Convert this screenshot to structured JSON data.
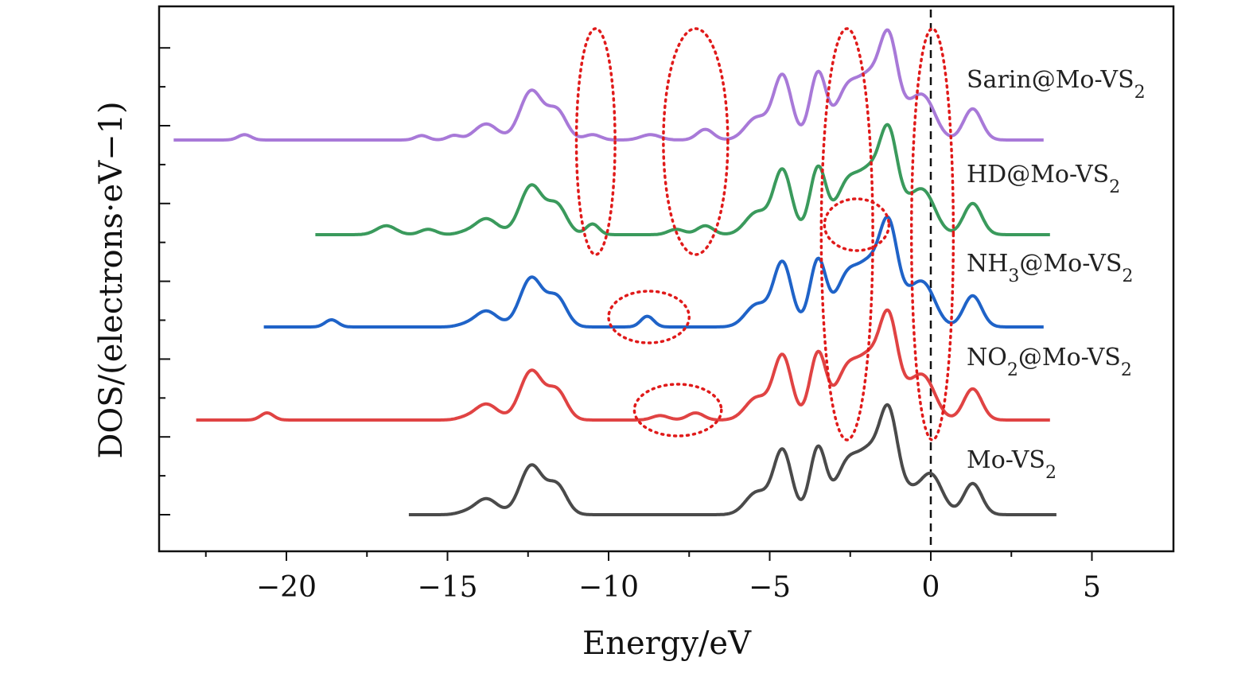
{
  "chart_data": {
    "type": "line",
    "title": "",
    "xlabel": "Energy/eV",
    "ylabel": "DOS/(electrons·eV−1)",
    "xlim": [
      -24,
      7.5
    ],
    "x_ticks": [
      -20,
      -15,
      -10,
      -5,
      0,
      5
    ],
    "x_tick_labels": [
      "−20",
      "−15",
      "−10",
      "−5",
      "0",
      "5"
    ],
    "grid": false,
    "legend": "labels placed at right end of each curve",
    "fermi_level": 0,
    "series": [
      {
        "name": "Mo-VS₂",
        "color": "#4a4a4a",
        "x_range": [
          -16.2,
          3.9
        ],
        "peaks": [
          [
            -14.5,
            0.02,
            0.25
          ],
          [
            -13.8,
            0.18,
            0.35
          ],
          [
            -12.4,
            0.55,
            0.35
          ],
          [
            -11.6,
            0.32,
            0.3
          ],
          [
            -5.4,
            0.25,
            0.35
          ],
          [
            -4.6,
            0.72,
            0.28
          ],
          [
            -3.5,
            0.75,
            0.25
          ],
          [
            -2.6,
            0.55,
            0.35
          ],
          [
            -1.9,
            0.62,
            0.35
          ],
          [
            -1.3,
            1.05,
            0.28
          ],
          [
            -0.7,
            0.2,
            0.3
          ],
          [
            0.0,
            0.45,
            0.35
          ],
          [
            1.3,
            0.35,
            0.28
          ]
        ]
      },
      {
        "name": "NO₂@Mo-VS₂",
        "color": "#e04343",
        "x_range": [
          -22.8,
          3.7
        ],
        "peaks": [
          [
            -20.6,
            0.08,
            0.2
          ],
          [
            -14.5,
            0.02,
            0.25
          ],
          [
            -13.8,
            0.18,
            0.35
          ],
          [
            -12.4,
            0.55,
            0.35
          ],
          [
            -11.6,
            0.32,
            0.3
          ],
          [
            -8.4,
            0.05,
            0.25
          ],
          [
            -7.3,
            0.08,
            0.25
          ],
          [
            -5.4,
            0.25,
            0.35
          ],
          [
            -4.6,
            0.72,
            0.28
          ],
          [
            -3.5,
            0.75,
            0.25
          ],
          [
            -2.6,
            0.55,
            0.35
          ],
          [
            -1.9,
            0.62,
            0.35
          ],
          [
            -1.3,
            1.05,
            0.28
          ],
          [
            -0.7,
            0.2,
            0.3
          ],
          [
            -0.2,
            0.45,
            0.35
          ],
          [
            1.3,
            0.35,
            0.28
          ]
        ]
      },
      {
        "name": "NH₃@Mo-VS₂",
        "color": "#1f63c8",
        "x_range": [
          -20.7,
          3.5
        ],
        "peaks": [
          [
            -18.6,
            0.08,
            0.2
          ],
          [
            -14.5,
            0.02,
            0.25
          ],
          [
            -13.8,
            0.18,
            0.35
          ],
          [
            -12.4,
            0.55,
            0.35
          ],
          [
            -11.6,
            0.32,
            0.3
          ],
          [
            -8.8,
            0.12,
            0.2
          ],
          [
            -5.4,
            0.25,
            0.35
          ],
          [
            -4.6,
            0.72,
            0.28
          ],
          [
            -3.5,
            0.75,
            0.25
          ],
          [
            -2.6,
            0.55,
            0.35
          ],
          [
            -1.9,
            0.62,
            0.35
          ],
          [
            -1.3,
            1.05,
            0.28
          ],
          [
            -0.7,
            0.2,
            0.3
          ],
          [
            -0.2,
            0.45,
            0.35
          ],
          [
            1.3,
            0.35,
            0.28
          ]
        ]
      },
      {
        "name": "HD@Mo-VS₂",
        "color": "#3a9a5c",
        "x_range": [
          -19.1,
          3.7
        ],
        "peaks": [
          [
            -16.9,
            0.1,
            0.3
          ],
          [
            -15.6,
            0.06,
            0.25
          ],
          [
            -14.5,
            0.02,
            0.25
          ],
          [
            -13.8,
            0.18,
            0.35
          ],
          [
            -12.4,
            0.55,
            0.35
          ],
          [
            -11.6,
            0.32,
            0.3
          ],
          [
            -10.5,
            0.12,
            0.2
          ],
          [
            -7.9,
            0.06,
            0.25
          ],
          [
            -7.0,
            0.1,
            0.25
          ],
          [
            -5.4,
            0.25,
            0.35
          ],
          [
            -4.6,
            0.72,
            0.28
          ],
          [
            -3.5,
            0.75,
            0.25
          ],
          [
            -2.6,
            0.55,
            0.35
          ],
          [
            -1.9,
            0.62,
            0.35
          ],
          [
            -1.3,
            1.05,
            0.28
          ],
          [
            -0.7,
            0.2,
            0.3
          ],
          [
            -0.2,
            0.45,
            0.35
          ],
          [
            1.3,
            0.35,
            0.28
          ]
        ]
      },
      {
        "name": "Sarin@Mo-VS₂",
        "color": "#a879d8",
        "x_range": [
          -23.5,
          3.5
        ],
        "peaks": [
          [
            -21.3,
            0.06,
            0.2
          ],
          [
            -15.8,
            0.05,
            0.2
          ],
          [
            -14.8,
            0.05,
            0.2
          ],
          [
            -13.8,
            0.18,
            0.35
          ],
          [
            -12.4,
            0.55,
            0.35
          ],
          [
            -11.6,
            0.32,
            0.3
          ],
          [
            -10.5,
            0.06,
            0.25
          ],
          [
            -8.7,
            0.06,
            0.3
          ],
          [
            -7.0,
            0.12,
            0.25
          ],
          [
            -5.4,
            0.25,
            0.35
          ],
          [
            -4.6,
            0.72,
            0.28
          ],
          [
            -3.5,
            0.75,
            0.25
          ],
          [
            -2.6,
            0.55,
            0.35
          ],
          [
            -1.9,
            0.62,
            0.35
          ],
          [
            -1.3,
            1.05,
            0.28
          ],
          [
            -0.7,
            0.2,
            0.3
          ],
          [
            -0.2,
            0.45,
            0.35
          ],
          [
            1.3,
            0.35,
            0.28
          ]
        ]
      }
    ],
    "annotations": [
      {
        "type": "dotted-ellipse",
        "color": "#e01a1a",
        "x_range": [
          -11.0,
          -9.8
        ],
        "around": [
          "HD@Mo-VS₂",
          "Sarin@Mo-VS₂"
        ]
      },
      {
        "type": "dotted-ellipse",
        "color": "#e01a1a",
        "x_range": [
          -8.3,
          -6.3
        ],
        "around": [
          "HD@Mo-VS₂",
          "Sarin@Mo-VS₂"
        ]
      },
      {
        "type": "dotted-ellipse",
        "color": "#e01a1a",
        "x_range": [
          -10.0,
          -7.5
        ],
        "around": [
          "NH₃@Mo-VS₂"
        ]
      },
      {
        "type": "dotted-ellipse",
        "color": "#e01a1a",
        "x_range": [
          -9.2,
          -6.5
        ],
        "around": [
          "NO₂@Mo-VS₂"
        ]
      },
      {
        "type": "dotted-ellipse",
        "color": "#e01a1a",
        "x_range": [
          -3.4,
          -1.8
        ],
        "around": [
          "NO₂@Mo-VS₂",
          "NH₃@Mo-VS₂",
          "HD@Mo-VS₂",
          "Sarin@Mo-VS₂"
        ]
      },
      {
        "type": "dotted-ellipse",
        "color": "#e01a1a",
        "x_range": [
          -3.3,
          -1.3
        ],
        "around": [
          "HD@Mo-VS₂"
        ]
      },
      {
        "type": "dotted-ellipse",
        "color": "#e01a1a",
        "x_range": [
          -0.6,
          0.7
        ],
        "around": [
          "NO₂@Mo-VS₂",
          "NH₃@Mo-VS₂",
          "HD@Mo-VS₂",
          "Sarin@Mo-VS₂"
        ]
      }
    ]
  }
}
